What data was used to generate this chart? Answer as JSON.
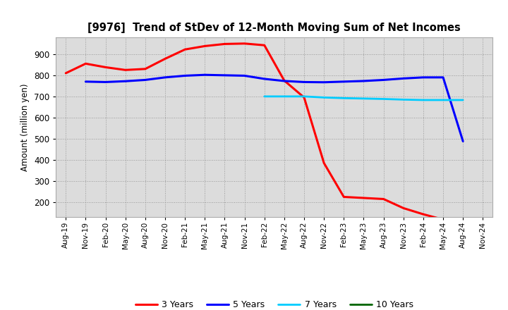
{
  "title": "[9976]  Trend of StDev of 12-Month Moving Sum of Net Incomes",
  "ylabel": "Amount (million yen)",
  "background_color": "#ffffff",
  "plot_bg_color": "#dcdcdc",
  "ylim": [
    130,
    980
  ],
  "yticks": [
    200,
    300,
    400,
    500,
    600,
    700,
    800,
    900
  ],
  "x_labels": [
    "Aug-19",
    "Nov-19",
    "Feb-20",
    "May-20",
    "Aug-20",
    "Nov-20",
    "Feb-21",
    "May-21",
    "Aug-21",
    "Nov-21",
    "Feb-22",
    "May-22",
    "Aug-22",
    "Nov-22",
    "Feb-23",
    "May-23",
    "Aug-23",
    "Nov-23",
    "Feb-24",
    "May-24",
    "Aug-24",
    "Nov-24"
  ],
  "series": {
    "3 Years": {
      "color": "#ff0000",
      "linewidth": 2.2,
      "values": [
        810,
        855,
        838,
        825,
        830,
        878,
        922,
        938,
        948,
        950,
        942,
        775,
        695,
        385,
        225,
        220,
        215,
        172,
        143,
        118,
        112,
        null
      ]
    },
    "5 Years": {
      "color": "#0000ff",
      "linewidth": 2.2,
      "values": [
        null,
        770,
        768,
        772,
        778,
        790,
        798,
        802,
        800,
        798,
        783,
        773,
        768,
        767,
        770,
        773,
        778,
        785,
        790,
        790,
        488,
        null
      ]
    },
    "7 Years": {
      "color": "#00ccff",
      "linewidth": 2.0,
      "values": [
        null,
        null,
        null,
        null,
        null,
        null,
        null,
        null,
        null,
        null,
        700,
        700,
        700,
        695,
        692,
        690,
        688,
        685,
        683,
        683,
        683,
        null
      ]
    },
    "10 Years": {
      "color": "#006400",
      "linewidth": 2.0,
      "values": [
        null,
        null,
        null,
        null,
        null,
        null,
        null,
        null,
        null,
        null,
        null,
        null,
        null,
        null,
        null,
        null,
        null,
        null,
        null,
        null,
        null,
        null
      ]
    }
  },
  "legend_order": [
    "3 Years",
    "5 Years",
    "7 Years",
    "10 Years"
  ]
}
